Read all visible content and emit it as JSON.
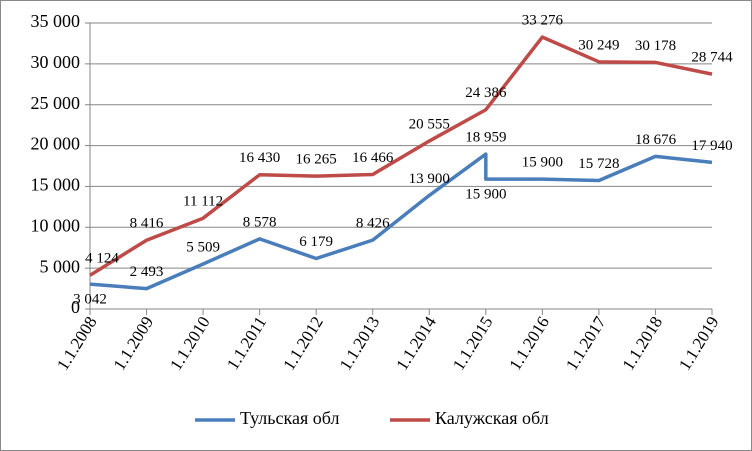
{
  "chart_data": {
    "type": "line",
    "xlim": [
      2008,
      2019
    ],
    "xticks": [
      {
        "value": 2008,
        "label": "1.1.2008"
      },
      {
        "value": 2009,
        "label": "1.1.2009"
      },
      {
        "value": 2010,
        "label": "1.1.2010"
      },
      {
        "value": 2011,
        "label": "1.1.2011"
      },
      {
        "value": 2012,
        "label": "1.1.2012"
      },
      {
        "value": 2013,
        "label": "1.1.2013"
      },
      {
        "value": 2014,
        "label": "1.1.2014"
      },
      {
        "value": 2015,
        "label": "1.1.2015"
      },
      {
        "value": 2016,
        "label": "1.1.2016"
      },
      {
        "value": 2017,
        "label": "1.1.2017"
      },
      {
        "value": 2018,
        "label": "1.1.2018"
      },
      {
        "value": 2019,
        "label": "1.1.2019"
      }
    ],
    "ylim": [
      0,
      35000
    ],
    "yticks": [
      0,
      {
        "value": 5000,
        "label": "5 000"
      },
      {
        "value": 10000,
        "label": "10 000"
      },
      {
        "value": 15000,
        "label": "15 000"
      },
      {
        "value": 20000,
        "label": "20 000"
      },
      {
        "value": 25000,
        "label": "25 000"
      },
      {
        "value": 30000,
        "label": "30 000"
      },
      {
        "value": 35000,
        "label": "35 000"
      }
    ],
    "grid": true,
    "legend": "bottom",
    "series": [
      {
        "name": "Тульская обл",
        "color": "#4a7ebb",
        "x": [
          2008,
          2009,
          2010,
          2011,
          2012,
          2013,
          2014,
          2015,
          2015,
          2016,
          2017,
          2018,
          2019
        ],
        "values": [
          3042,
          2493,
          5509,
          8578,
          6179,
          8426,
          13900,
          18959,
          15900,
          15900,
          15728,
          18676,
          17940
        ],
        "value_labels": [
          "3 042",
          "2 493",
          "5 509",
          "8 578",
          "6 179",
          "8 426",
          "13 900",
          "18 959",
          "15 900",
          "15 900",
          "15 728",
          "18 676",
          "17 940"
        ]
      },
      {
        "name": "Калужская обл",
        "color": "#be4b48",
        "x": [
          2008,
          2009,
          2010,
          2011,
          2012,
          2013,
          2014,
          2015,
          2016,
          2017,
          2018,
          2019
        ],
        "values": [
          4124,
          8416,
          11112,
          16430,
          16265,
          16466,
          20555,
          24386,
          33276,
          30249,
          30178,
          28744
        ],
        "value_labels": [
          "4 124",
          "8 416",
          "11 112",
          "16 430",
          "16 265",
          "16 466",
          "20 555",
          "24 386",
          "33 276",
          "30 249",
          "30 178",
          "28 744"
        ]
      }
    ]
  }
}
